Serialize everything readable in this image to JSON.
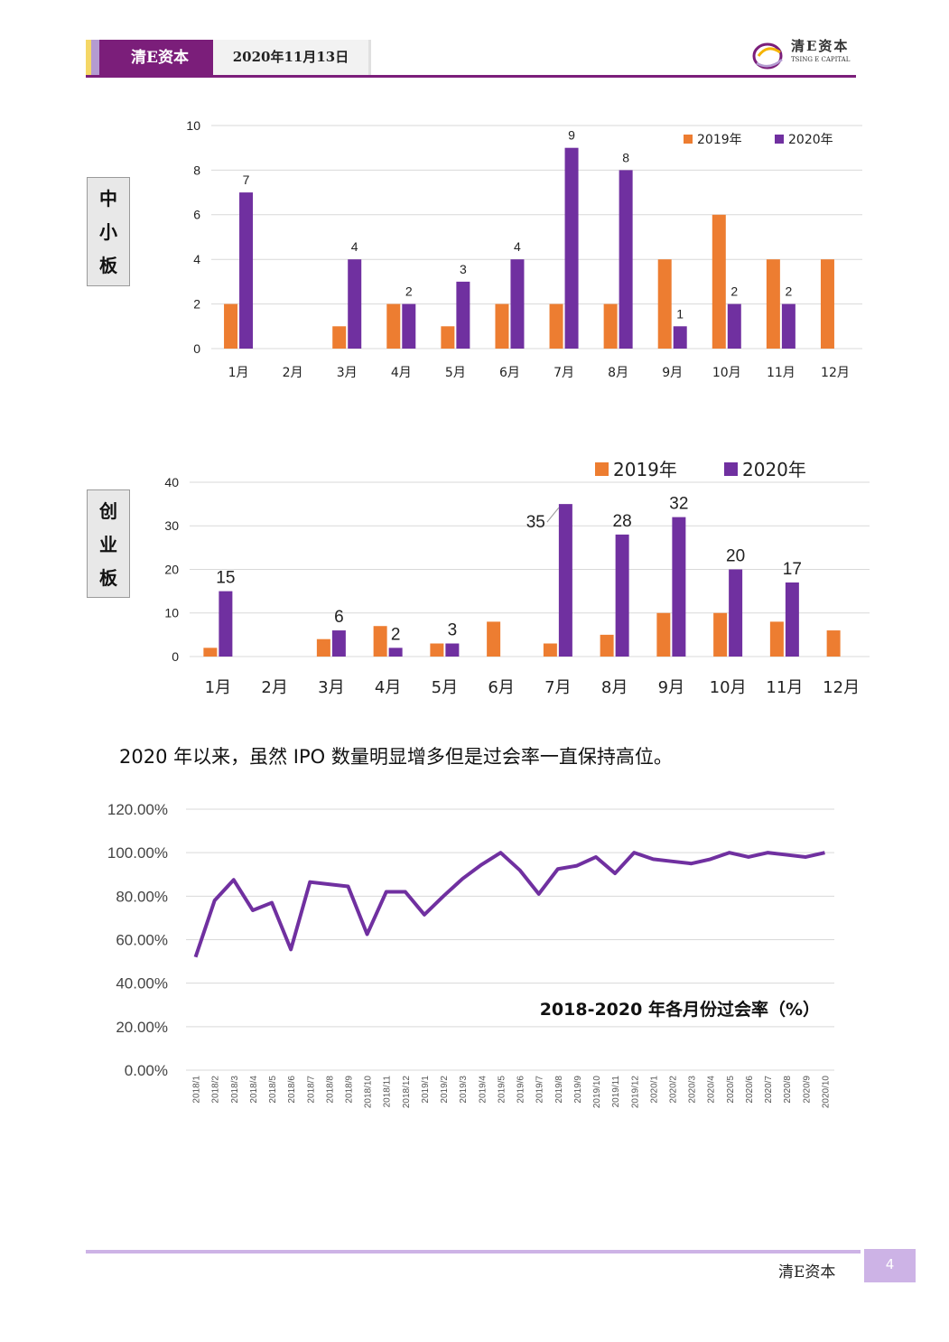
{
  "header": {
    "brand": "清E资本",
    "date": "2020年11月13日",
    "logo_cn": "清E资本",
    "logo_en": "TSING E CAPITAL",
    "stripe_colors": [
      "#f5d766",
      "#b49bd1",
      "#7b1e7a"
    ]
  },
  "charts": {
    "sme": {
      "label_chars": [
        "中",
        "小",
        "板"
      ]
    },
    "gem": {
      "label_chars": [
        "创",
        "业",
        "板"
      ]
    }
  },
  "sentence": "2020 年以来，虽然 IPO 数量明显增多但是过会率一直保持高位。",
  "footer": {
    "brand": "清E资本",
    "page_number": "4"
  },
  "colors": {
    "orange": "#ed7d31",
    "purple": "#7030a0",
    "line_purple": "#7030a0",
    "grid": "#d9d9d9"
  },
  "chart_data": [
    {
      "type": "bar",
      "categories": [
        "1月",
        "2月",
        "3月",
        "4月",
        "5月",
        "6月",
        "7月",
        "8月",
        "9月",
        "10月",
        "11月",
        "12月"
      ],
      "series": [
        {
          "name": "2019年",
          "values": [
            2,
            0,
            1,
            2,
            1,
            2,
            2,
            2,
            4,
            6,
            4,
            4
          ]
        },
        {
          "name": "2020年",
          "values": [
            7,
            0,
            4,
            2,
            3,
            4,
            9,
            8,
            1,
            2,
            2,
            0
          ]
        }
      ],
      "data_labels_2020": [
        "7",
        "",
        "4",
        "2",
        "3",
        "4",
        "9",
        "8",
        "1",
        "2",
        "2",
        ""
      ],
      "ylim": [
        0,
        10
      ],
      "yticks": [
        "0",
        "2",
        "4",
        "6",
        "8",
        "10"
      ],
      "grid": true,
      "legend": "top-right"
    },
    {
      "type": "bar",
      "categories": [
        "1月",
        "2月",
        "3月",
        "4月",
        "5月",
        "6月",
        "7月",
        "8月",
        "9月",
        "10月",
        "11月",
        "12月"
      ],
      "series": [
        {
          "name": "2019年",
          "values": [
            2,
            0,
            4,
            7,
            3,
            8,
            3,
            5,
            10,
            10,
            8,
            6
          ]
        },
        {
          "name": "2020年",
          "values": [
            15,
            0,
            6,
            2,
            3,
            0,
            35,
            28,
            32,
            20,
            17,
            0
          ]
        }
      ],
      "data_labels_2020": [
        "15",
        "",
        "6",
        "2",
        "3",
        "",
        "35",
        "28",
        "32",
        "20",
        "17",
        ""
      ],
      "ylim": [
        0,
        40
      ],
      "yticks": [
        "0",
        "10",
        "20",
        "30",
        "40"
      ],
      "grid": true,
      "legend": "top-right"
    },
    {
      "type": "line",
      "title": "2018-2020 年各月份过会率（%）",
      "x": [
        "2018/1",
        "2018/2",
        "2018/3",
        "2018/4",
        "2018/5",
        "2018/6",
        "2018/7",
        "2018/8",
        "2018/9",
        "2018/10",
        "2018/11",
        "2018/12",
        "2019/1",
        "2019/2",
        "2019/3",
        "2019/4",
        "2019/5",
        "2019/6",
        "2019/7",
        "2019/8",
        "2019/9",
        "2019/10",
        "2019/11",
        "2019/12",
        "2020/1",
        "2020/2",
        "2020/3",
        "2020/4",
        "2020/5",
        "2020/6",
        "2020/7",
        "2020/8",
        "2020/9",
        "2020/10"
      ],
      "series": [
        {
          "values": [
            52,
            78,
            87.5,
            73.5,
            77,
            55.5,
            86.5,
            85.5,
            84.5,
            62.5,
            82,
            82,
            71.5,
            80,
            88,
            94.5,
            100,
            92,
            81,
            92.5,
            94,
            98,
            90.5,
            100,
            97,
            96,
            95,
            97,
            100,
            98,
            100,
            99,
            98,
            100
          ]
        }
      ],
      "ylim": [
        0,
        120
      ],
      "yticks": [
        "0.00%",
        "20.00%",
        "40.00%",
        "60.00%",
        "80.00%",
        "100.00%",
        "120.00%"
      ],
      "grid": true
    }
  ]
}
